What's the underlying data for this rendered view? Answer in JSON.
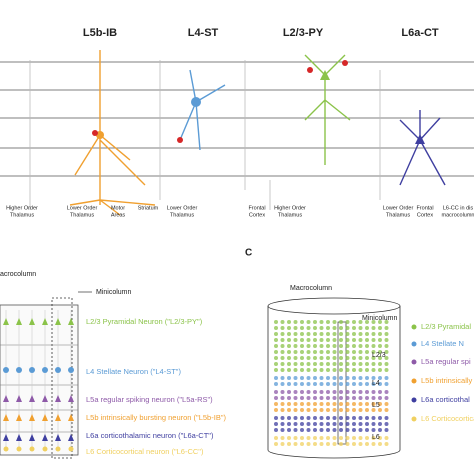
{
  "panel_a": {
    "columns": [
      "L5b-IB",
      "L4-ST",
      "L2/3-PY",
      "L6a-CT"
    ],
    "targets": [
      [
        "Higher Order",
        "Thalamus"
      ],
      [
        "Lower Order",
        "Thalamus"
      ],
      [
        "Motor",
        "Areas"
      ],
      [
        "Striatum"
      ],
      [
        "Lower Order",
        "Thalamus"
      ],
      [
        "Frontal",
        "Cortex"
      ],
      [
        "Higher Order",
        "Thalamus"
      ],
      [
        "Lower Order",
        "Thalamus"
      ],
      [
        "Frontal",
        "Cortex"
      ],
      [
        "L6-CC in dis",
        "macrocolumn"
      ]
    ]
  },
  "panel_b": {
    "macrocolumn": "acrocolumn",
    "minicolumn": "Minicolumn",
    "legend": [
      "L2/3 Pyramidal Neuron (\"L2/3-PY\")",
      "L4 Stellate Neuron (\"L4-ST\")",
      "L5a regular spiking neuron (\"L5a-RS\")",
      "L5b intrinsically bursting neuron (\"L5b-IB\")",
      "L6a corticothalamic neuron (\"L6a-CT\")",
      "L6 Corticocortical neuron (\"L6-CC\")"
    ]
  },
  "panel_c": {
    "letter": "C",
    "macrocolumn": "Macrocolumn",
    "minicolumn": "Minicolumn",
    "layers": [
      "L2/3",
      "L4",
      "L5",
      "L6"
    ],
    "legend": [
      "L2/3 Pyramidal",
      "L4 Stellate N",
      "L5a regular spi",
      "L5b intrinsically",
      "L6a corticothal",
      "L6 Corticocortical"
    ]
  }
}
